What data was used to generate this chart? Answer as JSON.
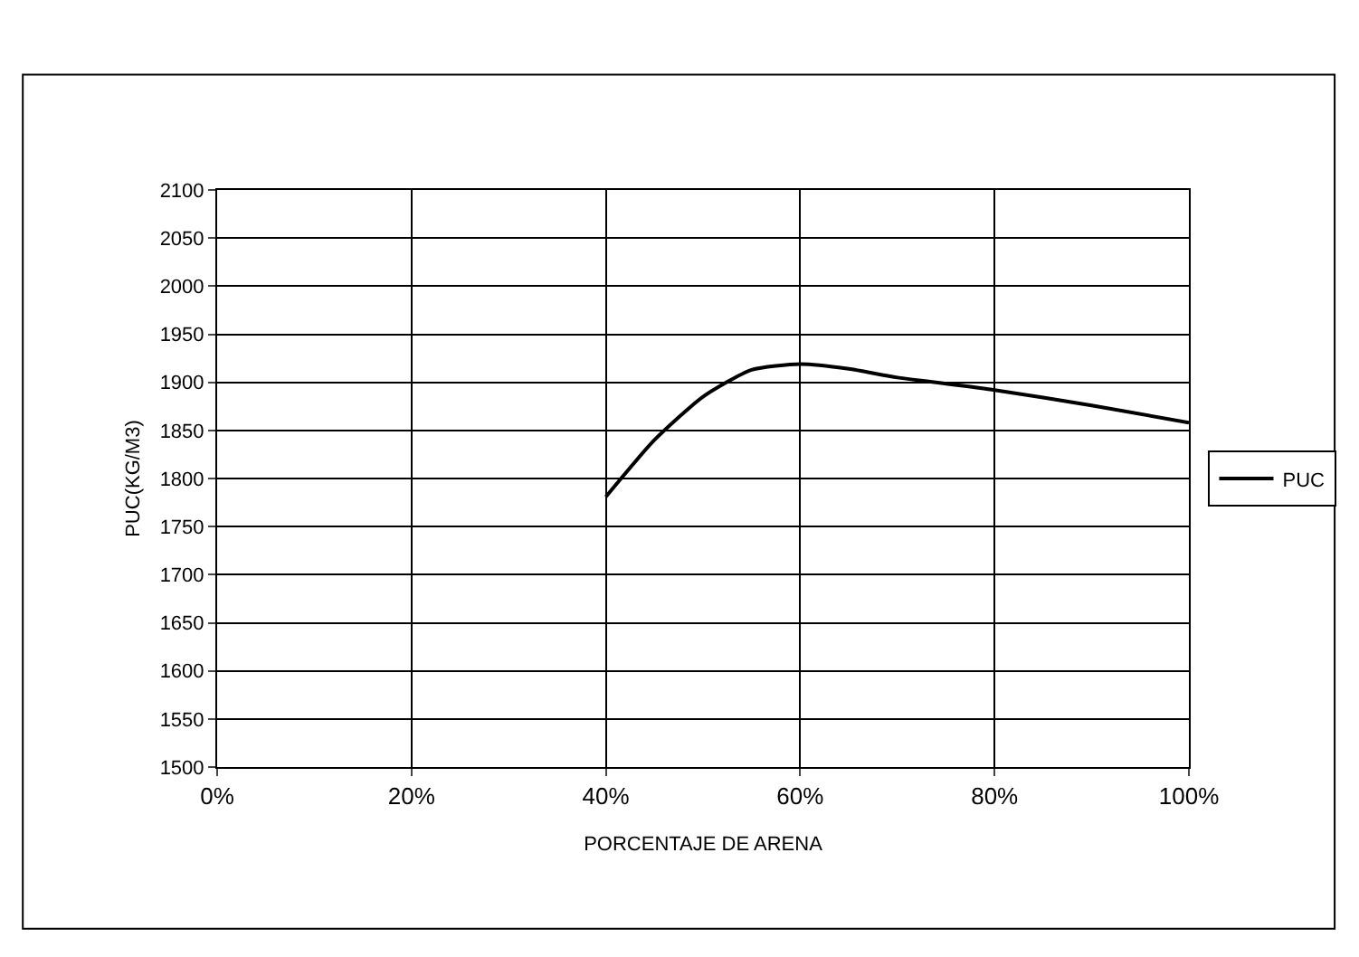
{
  "chart_data": {
    "type": "line",
    "xlabel": "PORCENTAJE DE ARENA",
    "ylabel": "PUC(KG/M3)",
    "x": [
      0.4,
      0.45,
      0.5,
      0.55,
      0.6,
      0.65,
      0.7,
      0.8,
      0.9,
      1.0
    ],
    "series": [
      {
        "name": "PUC",
        "color": "#000000",
        "values": [
          1781,
          1840,
          1885,
          1913,
          1919,
          1914,
          1905,
          1892,
          1876,
          1858
        ]
      }
    ],
    "xlim": [
      0,
      1
    ],
    "xticks": [
      {
        "value": 0,
        "label": "0%"
      },
      {
        "value": 0.2,
        "label": "20%"
      },
      {
        "value": 0.4,
        "label": "40%"
      },
      {
        "value": 0.6,
        "label": "60%"
      },
      {
        "value": 0.8,
        "label": "80%"
      },
      {
        "value": 1.0,
        "label": "100%"
      }
    ],
    "ylim": [
      1500,
      2100
    ],
    "yticks": [
      1500,
      1550,
      1600,
      1650,
      1700,
      1750,
      1800,
      1850,
      1900,
      1950,
      2000,
      2050,
      2100
    ],
    "grid": true,
    "legend": "right",
    "marker": "none",
    "line_style": "solid"
  }
}
